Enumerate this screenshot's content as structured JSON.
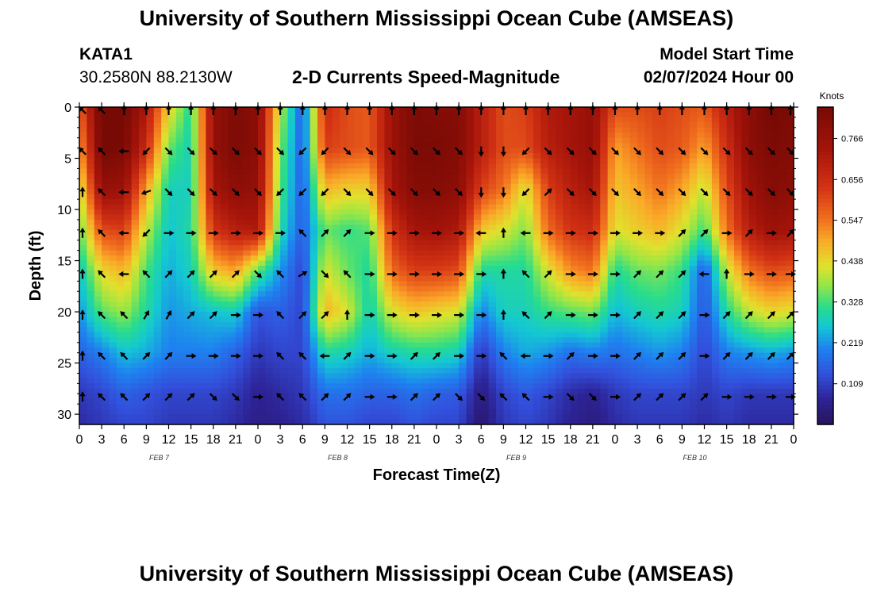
{
  "header": {
    "title": "University of Southern Mississippi Ocean Cube (AMSEAS)",
    "station": "KATA1",
    "coords": "30.2580N  88.2130W",
    "subtitle": "2-D Currents Speed-Magnitude",
    "model_start_label": "Model Start Time",
    "model_start_value": "02/07/2024 Hour 00"
  },
  "footer": {
    "title": "University of Southern Mississippi Ocean Cube (AMSEAS)"
  },
  "chart_data": {
    "type": "heatmap",
    "title": "2-D Currents Speed-Magnitude",
    "xlabel": "Forecast Time(Z)",
    "ylabel": "Depth (ft)",
    "colorbar_label": "Knots",
    "colorbar_ticks": [
      0.109,
      0.219,
      0.328,
      0.438,
      0.547,
      0.656,
      0.766
    ],
    "clim": [
      0.0,
      0.85
    ],
    "x_hours_range": [
      0,
      96
    ],
    "x_step_hours": 3,
    "x_tick_labels": [
      "0",
      "3",
      "6",
      "9",
      "12",
      "15",
      "18",
      "21",
      "0",
      "3",
      "6",
      "9",
      "12",
      "15",
      "18",
      "21",
      "0",
      "3",
      "6",
      "9",
      "12",
      "15",
      "18",
      "21",
      "0",
      "3",
      "6",
      "9",
      "12",
      "15",
      "18",
      "21",
      "0"
    ],
    "day_labels": [
      {
        "hour": 12,
        "label": "FEB 7"
      },
      {
        "hour": 36,
        "label": "FEB 8"
      },
      {
        "hour": 60,
        "label": "FEB 9"
      },
      {
        "hour": 84,
        "label": "FEB 10"
      }
    ],
    "y_range": [
      0,
      31
    ],
    "y_ticks": [
      0,
      5,
      10,
      15,
      20,
      25,
      30
    ],
    "depths_ft": [
      0,
      4,
      8,
      12,
      16,
      20,
      24,
      28,
      31
    ],
    "speed_knots": [
      [
        0.56,
        0.88,
        0.86,
        0.72,
        0.45,
        0.3,
        0.78,
        0.84,
        0.8,
        0.4,
        0.15,
        0.66,
        0.6,
        0.58,
        0.76,
        0.84,
        0.82,
        0.82,
        0.7,
        0.6,
        0.62,
        0.72,
        0.74,
        0.78,
        0.6,
        0.6,
        0.62,
        0.6,
        0.58,
        0.7,
        0.8,
        0.86,
        0.84
      ],
      [
        0.5,
        0.86,
        0.84,
        0.66,
        0.35,
        0.28,
        0.78,
        0.84,
        0.8,
        0.36,
        0.15,
        0.62,
        0.6,
        0.58,
        0.76,
        0.84,
        0.84,
        0.82,
        0.7,
        0.6,
        0.6,
        0.7,
        0.74,
        0.78,
        0.5,
        0.55,
        0.6,
        0.58,
        0.5,
        0.65,
        0.8,
        0.84,
        0.82
      ],
      [
        0.4,
        0.78,
        0.76,
        0.5,
        0.28,
        0.28,
        0.74,
        0.8,
        0.78,
        0.34,
        0.15,
        0.48,
        0.45,
        0.45,
        0.74,
        0.82,
        0.82,
        0.8,
        0.62,
        0.55,
        0.42,
        0.62,
        0.7,
        0.74,
        0.46,
        0.5,
        0.55,
        0.5,
        0.4,
        0.6,
        0.76,
        0.82,
        0.8
      ],
      [
        0.34,
        0.6,
        0.62,
        0.4,
        0.26,
        0.3,
        0.64,
        0.7,
        0.72,
        0.3,
        0.15,
        0.35,
        0.32,
        0.34,
        0.64,
        0.74,
        0.75,
        0.72,
        0.46,
        0.42,
        0.36,
        0.56,
        0.64,
        0.66,
        0.42,
        0.45,
        0.48,
        0.42,
        0.32,
        0.55,
        0.7,
        0.76,
        0.74
      ],
      [
        0.26,
        0.44,
        0.48,
        0.33,
        0.24,
        0.28,
        0.46,
        0.5,
        0.34,
        0.22,
        0.12,
        0.42,
        0.35,
        0.3,
        0.56,
        0.62,
        0.62,
        0.6,
        0.3,
        0.3,
        0.3,
        0.42,
        0.52,
        0.55,
        0.3,
        0.35,
        0.36,
        0.32,
        0.15,
        0.4,
        0.55,
        0.6,
        0.58
      ],
      [
        0.22,
        0.34,
        0.38,
        0.3,
        0.22,
        0.24,
        0.26,
        0.28,
        0.14,
        0.16,
        0.12,
        0.48,
        0.42,
        0.28,
        0.42,
        0.46,
        0.44,
        0.42,
        0.2,
        0.28,
        0.28,
        0.32,
        0.34,
        0.36,
        0.25,
        0.28,
        0.3,
        0.28,
        0.14,
        0.3,
        0.4,
        0.44,
        0.42
      ],
      [
        0.16,
        0.2,
        0.26,
        0.24,
        0.2,
        0.2,
        0.2,
        0.16,
        0.1,
        0.12,
        0.12,
        0.3,
        0.28,
        0.24,
        0.28,
        0.3,
        0.3,
        0.28,
        0.1,
        0.2,
        0.24,
        0.22,
        0.18,
        0.2,
        0.18,
        0.2,
        0.22,
        0.2,
        0.12,
        0.2,
        0.22,
        0.24,
        0.22
      ],
      [
        0.1,
        0.12,
        0.16,
        0.14,
        0.12,
        0.12,
        0.12,
        0.1,
        0.06,
        0.08,
        0.1,
        0.18,
        0.18,
        0.16,
        0.16,
        0.18,
        0.16,
        0.15,
        0.04,
        0.12,
        0.15,
        0.12,
        0.08,
        0.06,
        0.1,
        0.12,
        0.12,
        0.12,
        0.1,
        0.12,
        0.1,
        0.1,
        0.1
      ],
      [
        0.08,
        0.1,
        0.12,
        0.12,
        0.1,
        0.1,
        0.1,
        0.08,
        0.05,
        0.06,
        0.08,
        0.14,
        0.14,
        0.12,
        0.12,
        0.14,
        0.12,
        0.12,
        0.02,
        0.1,
        0.12,
        0.1,
        0.06,
        0.04,
        0.08,
        0.1,
        0.1,
        0.1,
        0.08,
        0.1,
        0.08,
        0.08,
        0.08
      ]
    ],
    "arrow_depths_ft": [
      0,
      4,
      8,
      12,
      16,
      20,
      24,
      28
    ],
    "arrow_direction_deg": [
      [
        135,
        135,
        90,
        90,
        90,
        90,
        90,
        90,
        90,
        90,
        90,
        90,
        90,
        90,
        90,
        90,
        90,
        90,
        90,
        90,
        90,
        90,
        90,
        90,
        90,
        90,
        90,
        90,
        90,
        90,
        90,
        90,
        90
      ],
      [
        135,
        135,
        180,
        225,
        315,
        315,
        315,
        315,
        315,
        315,
        225,
        225,
        315,
        315,
        315,
        315,
        315,
        315,
        270,
        270,
        225,
        315,
        315,
        315,
        315,
        315,
        315,
        315,
        315,
        315,
        315,
        315,
        315
      ],
      [
        90,
        135,
        180,
        200,
        315,
        315,
        315,
        315,
        315,
        225,
        225,
        225,
        315,
        315,
        315,
        315,
        315,
        315,
        270,
        270,
        225,
        45,
        315,
        315,
        315,
        315,
        315,
        315,
        315,
        315,
        315,
        315,
        315
      ],
      [
        90,
        135,
        180,
        225,
        0,
        0,
        0,
        0,
        0,
        0,
        135,
        45,
        45,
        0,
        0,
        0,
        0,
        0,
        180,
        90,
        180,
        0,
        0,
        0,
        0,
        0,
        0,
        45,
        45,
        0,
        45,
        0,
        45
      ],
      [
        90,
        135,
        180,
        135,
        45,
        45,
        45,
        45,
        315,
        135,
        30,
        315,
        135,
        0,
        0,
        0,
        0,
        0,
        0,
        90,
        135,
        45,
        0,
        0,
        0,
        45,
        45,
        45,
        180,
        90,
        0,
        0,
        0
      ],
      [
        90,
        135,
        135,
        60,
        60,
        45,
        45,
        0,
        0,
        135,
        45,
        45,
        90,
        0,
        0,
        0,
        0,
        0,
        0,
        90,
        135,
        45,
        0,
        0,
        0,
        45,
        45,
        45,
        0,
        45,
        45,
        45,
        45
      ],
      [
        90,
        135,
        135,
        45,
        45,
        0,
        0,
        0,
        0,
        135,
        135,
        180,
        45,
        0,
        0,
        45,
        45,
        0,
        0,
        135,
        180,
        0,
        45,
        0,
        0,
        45,
        45,
        45,
        0,
        45,
        45,
        45,
        45
      ],
      [
        90,
        135,
        135,
        45,
        45,
        45,
        315,
        315,
        0,
        135,
        135,
        45,
        45,
        0,
        0,
        45,
        45,
        315,
        315,
        135,
        135,
        0,
        315,
        315,
        0,
        45,
        45,
        45,
        45,
        0,
        0,
        0,
        0
      ]
    ]
  }
}
